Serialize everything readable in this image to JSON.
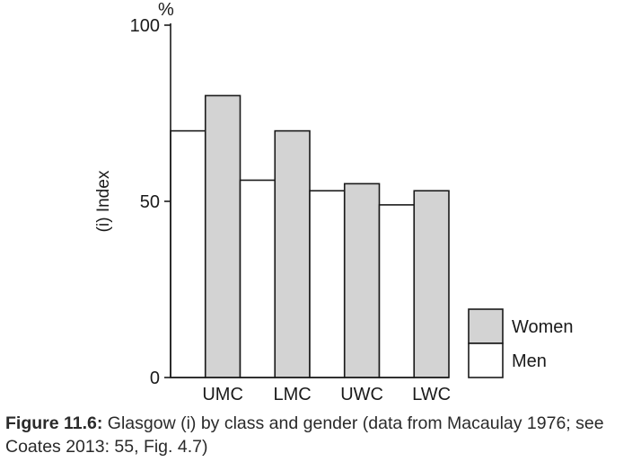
{
  "chart_data": {
    "type": "bar",
    "categories": [
      "UMC",
      "LMC",
      "UWC",
      "LWC"
    ],
    "series": [
      {
        "name": "Men",
        "values": [
          70,
          56,
          53,
          49
        ],
        "color": "#ffffff"
      },
      {
        "name": "Women",
        "values": [
          80,
          70,
          55,
          53
        ],
        "color": "#d3d3d3"
      }
    ],
    "ylabel": "(i) Index",
    "yunit": "%",
    "ylim": [
      0,
      100
    ],
    "yticks": [
      0,
      50,
      100
    ],
    "grid": false,
    "legend": "bottom-right",
    "legend_order": [
      "Women",
      "Men"
    ]
  },
  "caption": {
    "label": "Figure 11.6:",
    "text": " Glasgow (i) by class and gender (data from Macaulay 1976; see Coates 2013: 55, Fig. 4.7)"
  }
}
